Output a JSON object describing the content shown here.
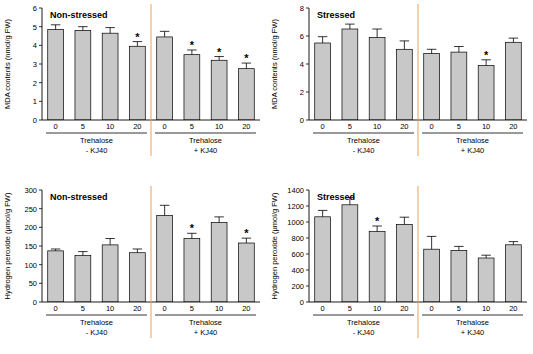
{
  "chart_data": [
    {
      "type": "bar",
      "title": "Non-stressed",
      "y_label": "MDA contents (nmol/g FW)",
      "categories": [
        "0",
        "5",
        "10",
        "20",
        "0",
        "5",
        "10",
        "20"
      ],
      "values": [
        4.85,
        4.8,
        4.65,
        3.95,
        4.45,
        3.5,
        3.2,
        2.75
      ],
      "errors": [
        0.25,
        0.2,
        0.3,
        0.25,
        0.3,
        0.25,
        0.2,
        0.3
      ],
      "annotations": [
        null,
        null,
        null,
        "*",
        null,
        "*",
        "*",
        "*"
      ],
      "groups": [
        {
          "label": "Trehalose",
          "sublabel": "- KJ40"
        },
        {
          "label": "Trehalose",
          "sublabel": "+ KJ40"
        }
      ],
      "color": "#c8c8c8",
      "ylim": [
        0,
        6
      ],
      "yticks": [
        0,
        1,
        2,
        3,
        4,
        5,
        6
      ]
    },
    {
      "type": "bar",
      "title": "Stressed",
      "y_label": "MDA contents (nmol/g FW)",
      "categories": [
        "0",
        "5",
        "10",
        "20",
        "0",
        "5",
        "10",
        "20"
      ],
      "values": [
        5.5,
        6.5,
        5.9,
        5.05,
        4.75,
        4.85,
        3.9,
        5.55
      ],
      "errors": [
        0.45,
        0.35,
        0.6,
        0.6,
        0.3,
        0.4,
        0.4,
        0.3
      ],
      "annotations": [
        null,
        null,
        null,
        null,
        null,
        null,
        "*",
        null
      ],
      "groups": [
        {
          "label": "Trehalose",
          "sublabel": "- KJ40"
        },
        {
          "label": "Trehalose",
          "sublabel": "+ KJ40"
        }
      ],
      "color": "#c8c8c8",
      "ylim": [
        0,
        8
      ],
      "yticks": [
        0,
        2,
        4,
        6,
        8
      ]
    },
    {
      "type": "bar",
      "title": "Non-stressed",
      "y_label": "Hydrogen peroxide (μmol/g FW)",
      "categories": [
        "0",
        "5",
        "10",
        "20",
        "0",
        "5",
        "10",
        "20"
      ],
      "values": [
        137,
        125,
        153,
        132,
        232,
        170,
        213,
        158
      ],
      "errors": [
        5,
        10,
        17,
        10,
        27,
        14,
        15,
        13
      ],
      "annotations": [
        null,
        null,
        null,
        null,
        null,
        "*",
        null,
        "*"
      ],
      "groups": [
        {
          "label": "Trehalose",
          "sublabel": "- KJ40"
        },
        {
          "label": "Trehalose",
          "sublabel": "+ KJ40"
        }
      ],
      "color": "#c8c8c8",
      "ylim": [
        0,
        300
      ],
      "yticks": [
        0,
        50,
        100,
        150,
        200,
        250,
        300
      ]
    },
    {
      "type": "bar",
      "title": "Stressed",
      "y_label": "Hydrogen peroxide (μmol/g FW)",
      "categories": [
        "0",
        "5",
        "10",
        "20",
        "0",
        "5",
        "10",
        "20"
      ],
      "values": [
        1065,
        1215,
        880,
        970,
        660,
        645,
        550,
        715
      ],
      "errors": [
        80,
        90,
        70,
        90,
        160,
        50,
        35,
        40
      ],
      "annotations": [
        null,
        null,
        "*",
        null,
        null,
        null,
        null,
        null
      ],
      "groups": [
        {
          "label": "Trehalose",
          "sublabel": "- KJ40"
        },
        {
          "label": "Trehalose",
          "sublabel": "+ KJ40"
        }
      ],
      "color": "#c8c8c8",
      "ylim": [
        0,
        1400
      ],
      "yticks": [
        0,
        200,
        400,
        600,
        800,
        1000,
        1200,
        1400
      ]
    }
  ]
}
